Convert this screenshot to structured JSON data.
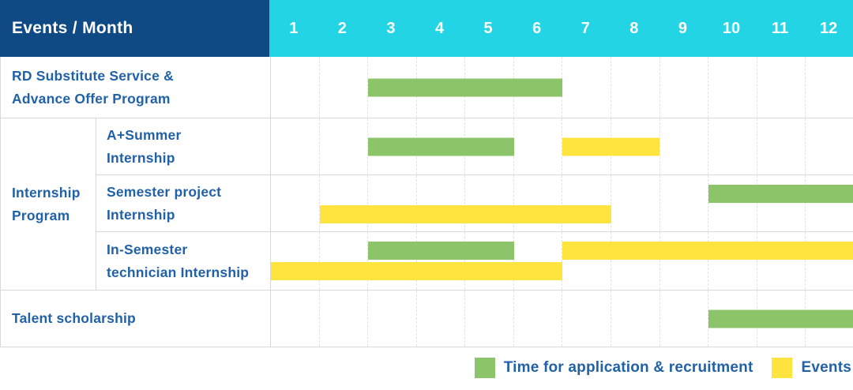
{
  "header": {
    "title": "Events / Month",
    "months": [
      "1",
      "2",
      "3",
      "4",
      "5",
      "6",
      "7",
      "8",
      "9",
      "10",
      "11",
      "12"
    ]
  },
  "group": {
    "label": "Internship Program",
    "label_lines": [
      "Internship",
      "Program"
    ]
  },
  "colors": {
    "header_bg": "#104a85",
    "months_bg": "#22d4e4",
    "label_text": "#2161a8",
    "grid_line": "#d9d9d9",
    "application_green": "#8cc46a",
    "events_yellow": "#ffe440"
  },
  "chart_data": {
    "type": "gantt",
    "title": "Events / Month",
    "x_axis": {
      "unit": "month",
      "range": [
        1,
        12
      ]
    },
    "series": {
      "application": {
        "label": "Time for application & recruitment",
        "color": "#8cc46a"
      },
      "events": {
        "label": "Events",
        "color": "#ffe440"
      }
    },
    "rows": [
      {
        "label": "RD Substitute Service & Advance Offer Program",
        "label_lines": [
          "RD Substitute Service &",
          "Advance Offer Program"
        ],
        "group": "",
        "bars": [
          {
            "series": "application",
            "start_month": 3,
            "end_month": 6,
            "line": "single"
          }
        ]
      },
      {
        "label": "A+Summer Internship",
        "label_lines": [
          "A+Summer",
          "Internship"
        ],
        "group": "Internship Program",
        "bars": [
          {
            "series": "application",
            "start_month": 3,
            "end_month": 5,
            "line": "single"
          },
          {
            "series": "events",
            "start_month": 7,
            "end_month": 8,
            "line": "single"
          }
        ]
      },
      {
        "label": "Semester project Internship",
        "label_lines": [
          "Semester project",
          "Internship"
        ],
        "group": "Internship Program",
        "bars": [
          {
            "series": "application",
            "start_month": 10,
            "end_month": 12,
            "line": "upper"
          },
          {
            "series": "events",
            "start_month": 2,
            "end_month": 7,
            "line": "lower"
          }
        ]
      },
      {
        "label": "In-Semester technician Internship",
        "label_lines": [
          "In-Semester",
          "technician Internship"
        ],
        "group": "Internship Program",
        "bars": [
          {
            "series": "application",
            "start_month": 3,
            "end_month": 5,
            "line": "upper"
          },
          {
            "series": "events",
            "start_month": 7,
            "end_month": 12,
            "line": "upper"
          },
          {
            "series": "events",
            "start_month": 1,
            "end_month": 6,
            "line": "lower"
          }
        ]
      },
      {
        "label": "Talent scholarship",
        "label_lines": [
          "Talent scholarship"
        ],
        "group": "",
        "bars": [
          {
            "series": "application",
            "start_month": 10,
            "end_month": 12,
            "line": "single"
          }
        ]
      }
    ]
  }
}
